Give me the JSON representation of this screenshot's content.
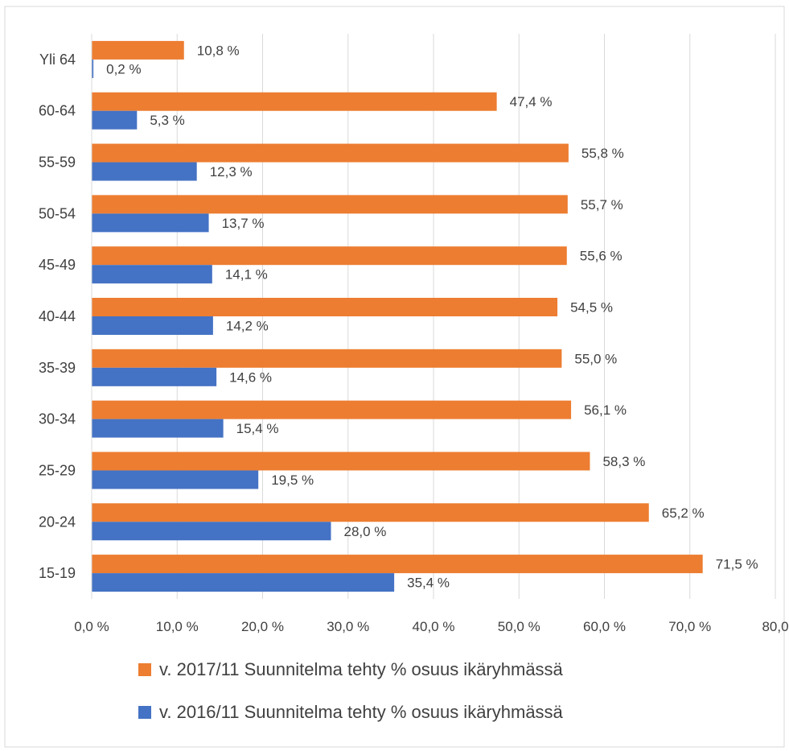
{
  "chart_data": {
    "type": "bar",
    "orientation": "horizontal",
    "categories": [
      "15-19",
      "20-24",
      "25-29",
      "30-34",
      "35-39",
      "40-44",
      "45-49",
      "50-54",
      "55-59",
      "60-64",
      "Yli 64"
    ],
    "series": [
      {
        "name": "v. 2017/11 Suunnitelma tehty % osuus ikäryhmässä",
        "color": "#ED7D31",
        "values": [
          71.5,
          65.2,
          58.3,
          56.1,
          55.0,
          54.5,
          55.6,
          55.7,
          55.8,
          47.4,
          10.8
        ],
        "labels": [
          "71,5 %",
          "65,2 %",
          "58,3 %",
          "56,1 %",
          "55,0 %",
          "54,5 %",
          "55,6 %",
          "55,7 %",
          "55,8 %",
          "47,4 %",
          "10,8 %"
        ]
      },
      {
        "name": "v. 2016/11 Suunnitelma tehty % osuus ikäryhmässä",
        "color": "#4472C4",
        "values": [
          35.4,
          28.0,
          19.5,
          15.4,
          14.6,
          14.2,
          14.1,
          13.7,
          12.3,
          5.3,
          0.2
        ],
        "labels": [
          "35,4 %",
          "28,0 %",
          "19,5 %",
          "15,4 %",
          "14,6 %",
          "14,2 %",
          "14,1 %",
          "13,7 %",
          "12,3 %",
          "5,3 %",
          "0,2 %"
        ]
      }
    ],
    "xlim": [
      0,
      80
    ],
    "x_ticks": [
      0,
      10,
      20,
      30,
      40,
      50,
      60,
      70,
      80
    ],
    "x_tick_labels": [
      "0,0 %",
      "10,0 %",
      "20,0 %",
      "30,0 %",
      "40,0 %",
      "50,0 %",
      "60,0 %",
      "70,0 %",
      "80,0"
    ],
    "grid": true,
    "legend_position": "bottom"
  }
}
